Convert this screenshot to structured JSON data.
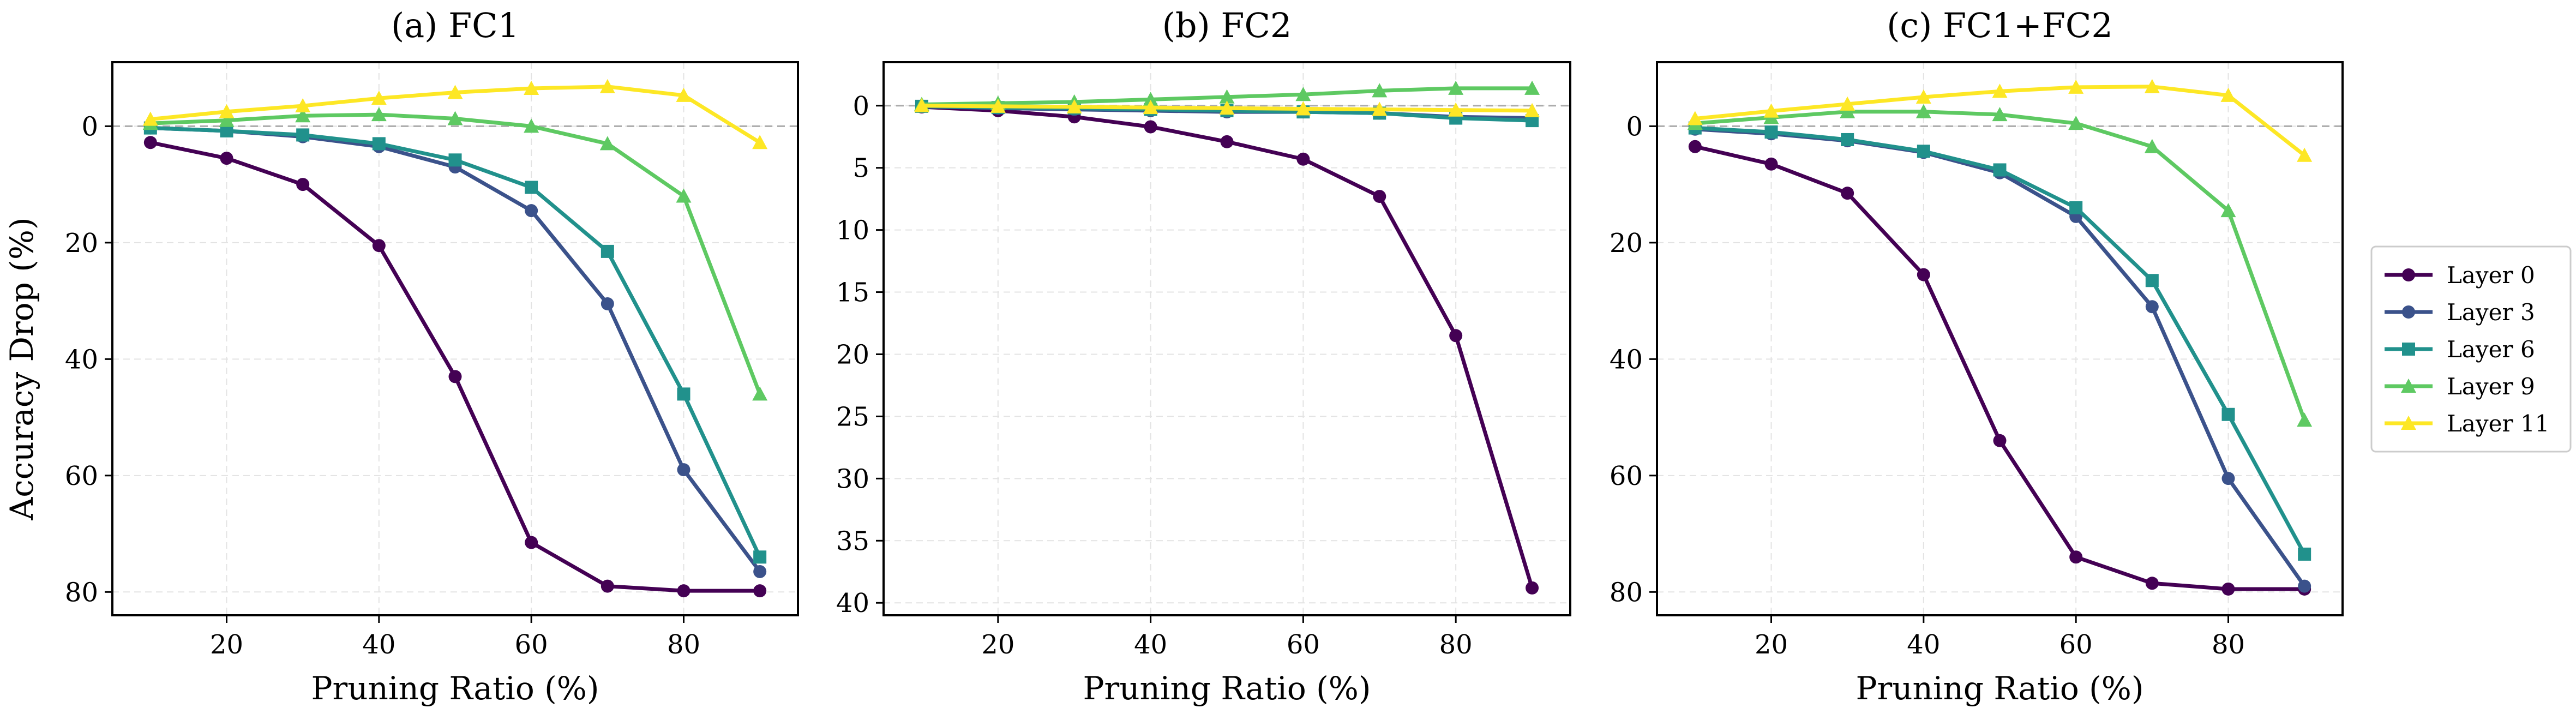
{
  "figure": {
    "shared_ylabel": "Accuracy Drop (%)"
  },
  "series_styles": [
    {
      "name": "Layer 0",
      "color": "#440154",
      "marker": "circle"
    },
    {
      "name": "Layer 3",
      "color": "#3b528b",
      "marker": "circle"
    },
    {
      "name": "Layer 6",
      "color": "#21918c",
      "marker": "square"
    },
    {
      "name": "Layer 9",
      "color": "#5ec962",
      "marker": "triangle"
    },
    {
      "name": "Layer 11",
      "color": "#fde725",
      "marker": "triangle"
    }
  ],
  "legend": {
    "placement": "right, outside panels",
    "items": [
      "Layer 0",
      "Layer 3",
      "Layer 6",
      "Layer 9",
      "Layer 11"
    ]
  },
  "chart_data": [
    {
      "type": "line",
      "title": "(a) FC1",
      "xlabel": "Pruning Ratio (%)",
      "ylabel": "Accuracy Drop (%)",
      "y_inverted": true,
      "xlim": [
        5,
        95
      ],
      "ylim": [
        -11,
        84
      ],
      "xticks": [
        20,
        40,
        60,
        80
      ],
      "yticks": [
        0,
        20,
        40,
        60,
        80
      ],
      "grid": true,
      "reference_line_y": 0,
      "x": [
        10,
        20,
        30,
        40,
        50,
        60,
        70,
        80,
        90
      ],
      "series": [
        {
          "name": "Layer 0",
          "values": [
            2.8,
            5.5,
            10,
            20.5,
            43,
            71.5,
            79,
            79.8,
            79.8
          ]
        },
        {
          "name": "Layer 3",
          "values": [
            0.3,
            0.8,
            1.8,
            3.5,
            7,
            14.5,
            30.5,
            59,
            76.5
          ]
        },
        {
          "name": "Layer 6",
          "values": [
            0.3,
            0.8,
            1.5,
            3,
            5.8,
            10.5,
            21.5,
            46,
            74
          ]
        },
        {
          "name": "Layer 9",
          "values": [
            -0.5,
            -1,
            -1.8,
            -2,
            -1.3,
            0,
            3,
            12,
            46
          ]
        },
        {
          "name": "Layer 11",
          "values": [
            -1.2,
            -2.5,
            -3.5,
            -4.8,
            -5.8,
            -6.5,
            -6.8,
            -5.3,
            2.8
          ]
        }
      ]
    },
    {
      "type": "line",
      "title": "(b) FC2",
      "xlabel": "Pruning Ratio (%)",
      "ylabel": "",
      "y_inverted": true,
      "xlim": [
        5,
        95
      ],
      "ylim": [
        -3.5,
        41
      ],
      "xticks": [
        20,
        40,
        60,
        80
      ],
      "yticks": [
        0,
        5,
        10,
        15,
        20,
        25,
        30,
        35,
        40
      ],
      "grid": true,
      "reference_line_y": 0,
      "x": [
        10,
        20,
        30,
        40,
        50,
        60,
        70,
        80,
        90
      ],
      "series": [
        {
          "name": "Layer 0",
          "values": [
            0.1,
            0.4,
            0.9,
            1.7,
            2.9,
            4.3,
            7.3,
            18.5,
            38.8
          ]
        },
        {
          "name": "Layer 3",
          "values": [
            0.05,
            0.2,
            0.3,
            0.4,
            0.5,
            0.5,
            0.6,
            0.9,
            1.0
          ]
        },
        {
          "name": "Layer 6",
          "values": [
            0.05,
            0.15,
            0.2,
            0.3,
            0.4,
            0.5,
            0.6,
            1.0,
            1.2
          ]
        },
        {
          "name": "Layer 9",
          "values": [
            -0.1,
            -0.2,
            -0.3,
            -0.5,
            -0.7,
            -0.9,
            -1.2,
            -1.4,
            -1.4
          ]
        },
        {
          "name": "Layer 11",
          "values": [
            0.0,
            0.05,
            0.1,
            0.15,
            0.2,
            0.25,
            0.3,
            0.35,
            0.4
          ]
        }
      ]
    },
    {
      "type": "line",
      "title": "(c) FC1+FC2",
      "xlabel": "Pruning Ratio (%)",
      "ylabel": "",
      "y_inverted": true,
      "xlim": [
        5,
        95
      ],
      "ylim": [
        -11,
        84
      ],
      "xticks": [
        20,
        40,
        60,
        80
      ],
      "yticks": [
        0,
        20,
        40,
        60,
        80
      ],
      "grid": true,
      "reference_line_y": 0,
      "x": [
        10,
        20,
        30,
        40,
        50,
        60,
        70,
        80,
        90
      ],
      "series": [
        {
          "name": "Layer 0",
          "values": [
            3.5,
            6.5,
            11.5,
            25.5,
            54,
            74,
            78.5,
            79.5,
            79.5
          ]
        },
        {
          "name": "Layer 3",
          "values": [
            0.5,
            1.3,
            2.5,
            4.5,
            8,
            15.5,
            31,
            60.5,
            79
          ]
        },
        {
          "name": "Layer 6",
          "values": [
            0.3,
            1,
            2.3,
            4.3,
            7.5,
            14,
            26.5,
            49.5,
            73.5
          ]
        },
        {
          "name": "Layer 9",
          "values": [
            -0.5,
            -1.5,
            -2.5,
            -2.5,
            -2,
            -0.5,
            3.5,
            14.5,
            50.5
          ]
        },
        {
          "name": "Layer 11",
          "values": [
            -1.3,
            -2.6,
            -3.8,
            -5,
            -6,
            -6.7,
            -6.8,
            -5.3,
            5
          ]
        }
      ]
    }
  ]
}
